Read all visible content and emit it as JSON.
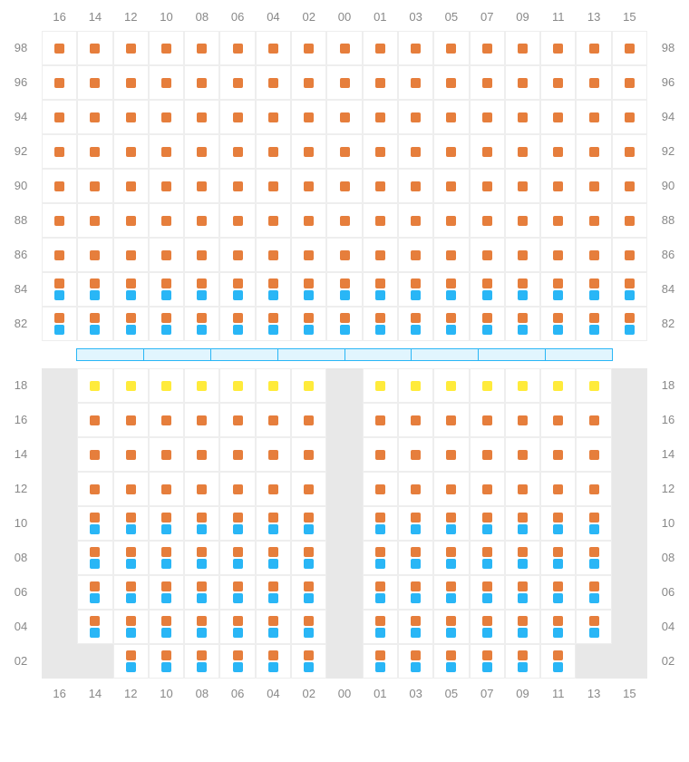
{
  "columns": [
    "16",
    "14",
    "12",
    "10",
    "08",
    "06",
    "04",
    "02",
    "00",
    "01",
    "03",
    "05",
    "07",
    "09",
    "11",
    "13",
    "15"
  ],
  "colors": {
    "orange": "#e67e3c",
    "blue": "#29b6f6",
    "yellow": "#ffeb3b"
  },
  "section1": {
    "rows": [
      {
        "label": "98",
        "cells": [
          [
            "o"
          ],
          [
            "o"
          ],
          [
            "o"
          ],
          [
            "o"
          ],
          [
            "o"
          ],
          [
            "o"
          ],
          [
            "o"
          ],
          [
            "o"
          ],
          [
            "o"
          ],
          [
            "o"
          ],
          [
            "o"
          ],
          [
            "o"
          ],
          [
            "o"
          ],
          [
            "o"
          ],
          [
            "o"
          ],
          [
            "o"
          ],
          [
            "o"
          ]
        ]
      },
      {
        "label": "96",
        "cells": [
          [
            "o"
          ],
          [
            "o"
          ],
          [
            "o"
          ],
          [
            "o"
          ],
          [
            "o"
          ],
          [
            "o"
          ],
          [
            "o"
          ],
          [
            "o"
          ],
          [
            "o"
          ],
          [
            "o"
          ],
          [
            "o"
          ],
          [
            "o"
          ],
          [
            "o"
          ],
          [
            "o"
          ],
          [
            "o"
          ],
          [
            "o"
          ],
          [
            "o"
          ]
        ]
      },
      {
        "label": "94",
        "cells": [
          [
            "o"
          ],
          [
            "o"
          ],
          [
            "o"
          ],
          [
            "o"
          ],
          [
            "o"
          ],
          [
            "o"
          ],
          [
            "o"
          ],
          [
            "o"
          ],
          [
            "o"
          ],
          [
            "o"
          ],
          [
            "o"
          ],
          [
            "o"
          ],
          [
            "o"
          ],
          [
            "o"
          ],
          [
            "o"
          ],
          [
            "o"
          ],
          [
            "o"
          ]
        ]
      },
      {
        "label": "92",
        "cells": [
          [
            "o"
          ],
          [
            "o"
          ],
          [
            "o"
          ],
          [
            "o"
          ],
          [
            "o"
          ],
          [
            "o"
          ],
          [
            "o"
          ],
          [
            "o"
          ],
          [
            "o"
          ],
          [
            "o"
          ],
          [
            "o"
          ],
          [
            "o"
          ],
          [
            "o"
          ],
          [
            "o"
          ],
          [
            "o"
          ],
          [
            "o"
          ],
          [
            "o"
          ]
        ]
      },
      {
        "label": "90",
        "cells": [
          [
            "o"
          ],
          [
            "o"
          ],
          [
            "o"
          ],
          [
            "o"
          ],
          [
            "o"
          ],
          [
            "o"
          ],
          [
            "o"
          ],
          [
            "o"
          ],
          [
            "o"
          ],
          [
            "o"
          ],
          [
            "o"
          ],
          [
            "o"
          ],
          [
            "o"
          ],
          [
            "o"
          ],
          [
            "o"
          ],
          [
            "o"
          ],
          [
            "o"
          ]
        ]
      },
      {
        "label": "88",
        "cells": [
          [
            "o"
          ],
          [
            "o"
          ],
          [
            "o"
          ],
          [
            "o"
          ],
          [
            "o"
          ],
          [
            "o"
          ],
          [
            "o"
          ],
          [
            "o"
          ],
          [
            "o"
          ],
          [
            "o"
          ],
          [
            "o"
          ],
          [
            "o"
          ],
          [
            "o"
          ],
          [
            "o"
          ],
          [
            "o"
          ],
          [
            "o"
          ],
          [
            "o"
          ]
        ]
      },
      {
        "label": "86",
        "cells": [
          [
            "o"
          ],
          [
            "o"
          ],
          [
            "o"
          ],
          [
            "o"
          ],
          [
            "o"
          ],
          [
            "o"
          ],
          [
            "o"
          ],
          [
            "o"
          ],
          [
            "o"
          ],
          [
            "o"
          ],
          [
            "o"
          ],
          [
            "o"
          ],
          [
            "o"
          ],
          [
            "o"
          ],
          [
            "o"
          ],
          [
            "o"
          ],
          [
            "o"
          ]
        ]
      },
      {
        "label": "84",
        "cells": [
          [
            "o",
            "b"
          ],
          [
            "o",
            "b"
          ],
          [
            "o",
            "b"
          ],
          [
            "o",
            "b"
          ],
          [
            "o",
            "b"
          ],
          [
            "o",
            "b"
          ],
          [
            "o",
            "b"
          ],
          [
            "o",
            "b"
          ],
          [
            "o",
            "b"
          ],
          [
            "o",
            "b"
          ],
          [
            "o",
            "b"
          ],
          [
            "o",
            "b"
          ],
          [
            "o",
            "b"
          ],
          [
            "o",
            "b"
          ],
          [
            "o",
            "b"
          ],
          [
            "o",
            "b"
          ],
          [
            "o",
            "b"
          ]
        ]
      },
      {
        "label": "82",
        "cells": [
          [
            "o",
            "b"
          ],
          [
            "o",
            "b"
          ],
          [
            "o",
            "b"
          ],
          [
            "o",
            "b"
          ],
          [
            "o",
            "b"
          ],
          [
            "o",
            "b"
          ],
          [
            "o",
            "b"
          ],
          [
            "o",
            "b"
          ],
          [
            "o",
            "b"
          ],
          [
            "o",
            "b"
          ],
          [
            "o",
            "b"
          ],
          [
            "o",
            "b"
          ],
          [
            "o",
            "b"
          ],
          [
            "o",
            "b"
          ],
          [
            "o",
            "b"
          ],
          [
            "o",
            "b"
          ],
          [
            "o",
            "b"
          ]
        ]
      }
    ]
  },
  "section2": {
    "rows": [
      {
        "label": "18",
        "cells": [
          null,
          [
            "y"
          ],
          [
            "y"
          ],
          [
            "y"
          ],
          [
            "y"
          ],
          [
            "y"
          ],
          [
            "y"
          ],
          [
            "y"
          ],
          null,
          [
            "y"
          ],
          [
            "y"
          ],
          [
            "y"
          ],
          [
            "y"
          ],
          [
            "y"
          ],
          [
            "y"
          ],
          [
            "y"
          ],
          null
        ]
      },
      {
        "label": "16",
        "cells": [
          null,
          [
            "o"
          ],
          [
            "o"
          ],
          [
            "o"
          ],
          [
            "o"
          ],
          [
            "o"
          ],
          [
            "o"
          ],
          [
            "o"
          ],
          null,
          [
            "o"
          ],
          [
            "o"
          ],
          [
            "o"
          ],
          [
            "o"
          ],
          [
            "o"
          ],
          [
            "o"
          ],
          [
            "o"
          ],
          null
        ]
      },
      {
        "label": "14",
        "cells": [
          null,
          [
            "o"
          ],
          [
            "o"
          ],
          [
            "o"
          ],
          [
            "o"
          ],
          [
            "o"
          ],
          [
            "o"
          ],
          [
            "o"
          ],
          null,
          [
            "o"
          ],
          [
            "o"
          ],
          [
            "o"
          ],
          [
            "o"
          ],
          [
            "o"
          ],
          [
            "o"
          ],
          [
            "o"
          ],
          null
        ]
      },
      {
        "label": "12",
        "cells": [
          null,
          [
            "o"
          ],
          [
            "o"
          ],
          [
            "o"
          ],
          [
            "o"
          ],
          [
            "o"
          ],
          [
            "o"
          ],
          [
            "o"
          ],
          null,
          [
            "o"
          ],
          [
            "o"
          ],
          [
            "o"
          ],
          [
            "o"
          ],
          [
            "o"
          ],
          [
            "o"
          ],
          [
            "o"
          ],
          null
        ]
      },
      {
        "label": "10",
        "cells": [
          null,
          [
            "o",
            "b"
          ],
          [
            "o",
            "b"
          ],
          [
            "o",
            "b"
          ],
          [
            "o",
            "b"
          ],
          [
            "o",
            "b"
          ],
          [
            "o",
            "b"
          ],
          [
            "o",
            "b"
          ],
          null,
          [
            "o",
            "b"
          ],
          [
            "o",
            "b"
          ],
          [
            "o",
            "b"
          ],
          [
            "o",
            "b"
          ],
          [
            "o",
            "b"
          ],
          [
            "o",
            "b"
          ],
          [
            "o",
            "b"
          ],
          null
        ]
      },
      {
        "label": "08",
        "cells": [
          null,
          [
            "o",
            "b"
          ],
          [
            "o",
            "b"
          ],
          [
            "o",
            "b"
          ],
          [
            "o",
            "b"
          ],
          [
            "o",
            "b"
          ],
          [
            "o",
            "b"
          ],
          [
            "o",
            "b"
          ],
          null,
          [
            "o",
            "b"
          ],
          [
            "o",
            "b"
          ],
          [
            "o",
            "b"
          ],
          [
            "o",
            "b"
          ],
          [
            "o",
            "b"
          ],
          [
            "o",
            "b"
          ],
          [
            "o",
            "b"
          ],
          null
        ]
      },
      {
        "label": "06",
        "cells": [
          null,
          [
            "o",
            "b"
          ],
          [
            "o",
            "b"
          ],
          [
            "o",
            "b"
          ],
          [
            "o",
            "b"
          ],
          [
            "o",
            "b"
          ],
          [
            "o",
            "b"
          ],
          [
            "o",
            "b"
          ],
          null,
          [
            "o",
            "b"
          ],
          [
            "o",
            "b"
          ],
          [
            "o",
            "b"
          ],
          [
            "o",
            "b"
          ],
          [
            "o",
            "b"
          ],
          [
            "o",
            "b"
          ],
          [
            "o",
            "b"
          ],
          null
        ]
      },
      {
        "label": "04",
        "cells": [
          null,
          [
            "o",
            "b"
          ],
          [
            "o",
            "b"
          ],
          [
            "o",
            "b"
          ],
          [
            "o",
            "b"
          ],
          [
            "o",
            "b"
          ],
          [
            "o",
            "b"
          ],
          [
            "o",
            "b"
          ],
          null,
          [
            "o",
            "b"
          ],
          [
            "o",
            "b"
          ],
          [
            "o",
            "b"
          ],
          [
            "o",
            "b"
          ],
          [
            "o",
            "b"
          ],
          [
            "o",
            "b"
          ],
          [
            "o",
            "b"
          ],
          null
        ]
      },
      {
        "label": "02",
        "cells": [
          null,
          null,
          [
            "o",
            "b"
          ],
          [
            "o",
            "b"
          ],
          [
            "o",
            "b"
          ],
          [
            "o",
            "b"
          ],
          [
            "o",
            "b"
          ],
          [
            "o",
            "b"
          ],
          null,
          [
            "o",
            "b"
          ],
          [
            "o",
            "b"
          ],
          [
            "o",
            "b"
          ],
          [
            "o",
            "b"
          ],
          [
            "o",
            "b"
          ],
          [
            "o",
            "b"
          ],
          null,
          null
        ]
      }
    ]
  },
  "divider_segments": 8
}
